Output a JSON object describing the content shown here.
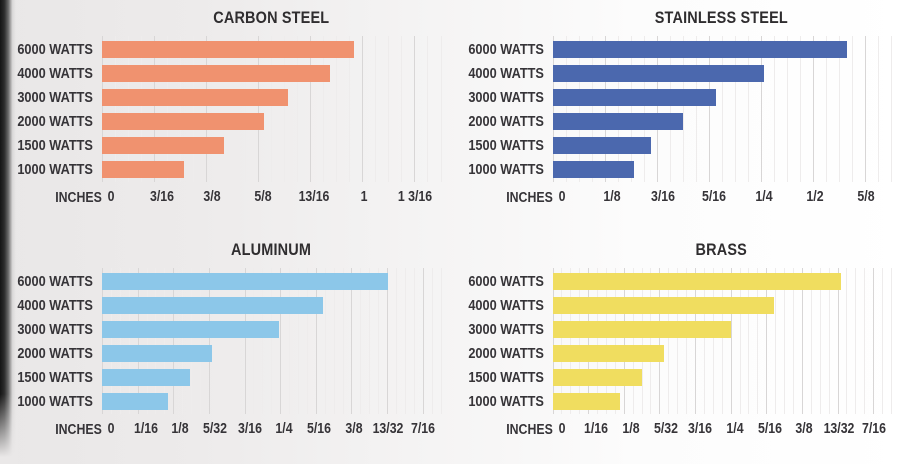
{
  "page": {
    "background_left": "#e9e7e7",
    "background_right": "#ffffff",
    "edge_strip_color": "#141414",
    "text_color": "#363438",
    "gridline_major_color": "#d8d6d6",
    "gridline_minor_color": "#eeecec"
  },
  "chart_data": [
    {
      "type": "bar",
      "orientation": "horizontal",
      "title": "CARBON STEEL",
      "bar_color": "#f0926f",
      "xlabel": "INCHES",
      "categories": [
        "6000 WATTS",
        "4000 WATTS",
        "3000 WATTS",
        "2000 WATTS",
        "1500 WATTS",
        "1000 WATTS"
      ],
      "tick_labels": [
        "0",
        "3/16",
        "3/8",
        "5/8",
        "13/16",
        "1",
        "1 3/16"
      ],
      "values_ticks": [
        4.83,
        4.37,
        3.58,
        3.12,
        2.34,
        1.57
      ],
      "approx_in": [
        0.97,
        0.88,
        0.73,
        0.66,
        0.46,
        0.3
      ],
      "grid": true,
      "minor_per_interval": 4,
      "axis_extend_ticks": 0.5
    },
    {
      "type": "bar",
      "orientation": "horizontal",
      "title": "STAINLESS STEEL",
      "bar_color": "#4b68ae",
      "xlabel": "INCHES",
      "categories": [
        "6000 WATTS",
        "4000 WATTS",
        "3000 WATTS",
        "2000 WATTS",
        "1500 WATTS",
        "1000 WATTS"
      ],
      "tick_labels": [
        "0",
        "1/8",
        "3/16",
        "5/16",
        "1/4",
        "1/2",
        "5/8"
      ],
      "values_ticks": [
        5.65,
        4.06,
        3.14,
        2.51,
        1.9,
        1.57
      ],
      "approx_in": [
        0.58,
        0.27,
        0.3,
        0.25,
        0.18,
        0.16
      ],
      "grid": true,
      "minor_per_interval": 4,
      "axis_extend_ticks": 0.5
    },
    {
      "type": "bar",
      "orientation": "horizontal",
      "title": "ALUMINUM",
      "bar_color": "#8cc7e9",
      "xlabel": "INCHES",
      "categories": [
        "6000 WATTS",
        "4000 WATTS",
        "3000 WATTS",
        "2000 WATTS",
        "1500 WATTS",
        "1000 WATTS"
      ],
      "tick_labels": [
        "0",
        "1/16",
        "1/8",
        "5/32",
        "3/16",
        "1/4",
        "5/16",
        "3/8",
        "13/32",
        "7/16"
      ],
      "values_ticks": [
        8.04,
        6.19,
        4.97,
        3.1,
        2.47,
        1.85
      ],
      "approx_in": [
        0.41,
        0.32,
        0.25,
        0.16,
        0.14,
        0.12
      ],
      "grid": true,
      "minor_per_interval": 4,
      "axis_extend_ticks": 0.5
    },
    {
      "type": "bar",
      "orientation": "horizontal",
      "title": "BRASS",
      "bar_color": "#f0dd5f",
      "xlabel": "INCHES",
      "categories": [
        "6000 WATTS",
        "4000 WATTS",
        "3000 WATTS",
        "2000 WATTS",
        "1500 WATTS",
        "1000 WATTS"
      ],
      "tick_labels": [
        "0",
        "1/16",
        "1/8",
        "5/32",
        "3/16",
        "1/4",
        "5/16",
        "3/8",
        "13/32",
        "7/16"
      ],
      "values_ticks": [
        8.09,
        6.23,
        5.0,
        3.14,
        2.51,
        1.89
      ],
      "approx_in": [
        0.41,
        0.33,
        0.25,
        0.16,
        0.14,
        0.12
      ],
      "grid": true,
      "minor_per_interval": 4,
      "axis_extend_ticks": 0.5
    }
  ]
}
